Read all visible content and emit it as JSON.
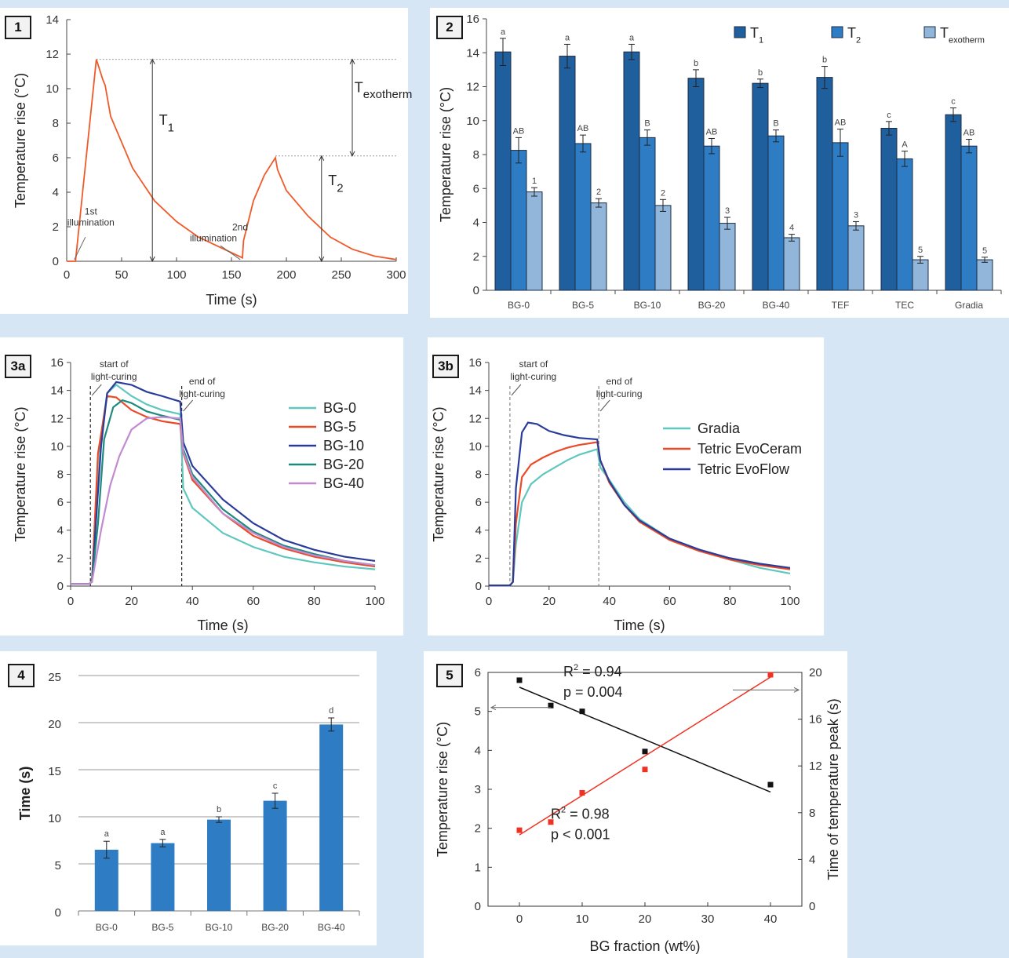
{
  "badges": {
    "p1": "1",
    "p2": "2",
    "p3a": "3a",
    "p3b": "3b",
    "p4": "4",
    "p5": "5"
  },
  "chart_data": [
    {
      "id": "p1",
      "type": "line",
      "xlabel": "Time (s)",
      "ylabel": "Temperature rise (°C)",
      "xlim": [
        0,
        300
      ],
      "ylim": [
        0,
        14
      ],
      "xticks": [
        0,
        50,
        100,
        150,
        200,
        250,
        300
      ],
      "yticks": [
        0,
        2,
        4,
        6,
        8,
        10,
        12,
        14
      ],
      "series": [
        {
          "color": "#f05a28",
          "x": [
            0,
            8,
            27,
            33,
            35,
            40,
            60,
            80,
            100,
            120,
            140,
            160,
            161,
            170,
            180,
            190,
            192,
            200,
            220,
            240,
            260,
            280,
            300
          ],
          "y": [
            0,
            0,
            11.7,
            10.5,
            10.2,
            8.4,
            5.4,
            3.5,
            2.3,
            1.4,
            0.8,
            0.2,
            1.2,
            3.5,
            5.0,
            6.0,
            5.3,
            4.1,
            2.6,
            1.4,
            0.7,
            0.3,
            0.1
          ]
        }
      ],
      "annotations": [
        {
          "text": "1st",
          "text2": "illumination"
        },
        {
          "text": "2nd",
          "text2": "illumination"
        },
        {
          "text": "T",
          "sub": "1"
        },
        {
          "text": "T",
          "sub": "2"
        },
        {
          "text": "T",
          "sub": "exotherm"
        }
      ]
    },
    {
      "id": "p2",
      "type": "bar",
      "ylabel": "Temperature rise (°C)",
      "ylim": [
        0,
        16
      ],
      "yticks": [
        0,
        2,
        4,
        6,
        8,
        10,
        12,
        14,
        16
      ],
      "categories": [
        "BG-0",
        "BG-5",
        "BG-10",
        "BG-20",
        "BG-40",
        "TEF",
        "TEC",
        "Gradia"
      ],
      "series": [
        {
          "name": "T",
          "sub": "1",
          "color": "#1f5f9e",
          "values": [
            14.05,
            13.8,
            14.05,
            12.5,
            12.2,
            12.55,
            9.55,
            10.35
          ],
          "err": [
            0.8,
            0.7,
            0.45,
            0.5,
            0.25,
            0.65,
            0.4,
            0.4
          ],
          "letters": [
            "a",
            "a",
            "a",
            "b",
            "b",
            "b",
            "c",
            "c"
          ]
        },
        {
          "name": "T",
          "sub": "2",
          "color": "#2e7dc4",
          "values": [
            8.25,
            8.65,
            9.0,
            8.5,
            9.1,
            8.7,
            7.75,
            8.5
          ],
          "err": [
            0.75,
            0.5,
            0.45,
            0.45,
            0.35,
            0.8,
            0.45,
            0.4
          ],
          "letters": [
            "AB",
            "AB",
            "B",
            "AB",
            "B",
            "AB",
            "A",
            "AB"
          ]
        },
        {
          "name": "T",
          "sub": "exotherm",
          "color": "#92b5da",
          "values": [
            5.8,
            5.15,
            5.0,
            3.95,
            3.1,
            3.8,
            1.8,
            1.8
          ],
          "err": [
            0.25,
            0.25,
            0.35,
            0.35,
            0.2,
            0.25,
            0.2,
            0.15
          ],
          "letters": [
            "1",
            "2",
            "2",
            "3",
            "4",
            "3",
            "5",
            "5"
          ]
        }
      ]
    },
    {
      "id": "p3a",
      "type": "line",
      "xlabel": "Time (s)",
      "ylabel": "Temperature rise (°C)",
      "xlim": [
        0,
        100
      ],
      "ylim": [
        0,
        16
      ],
      "xticks": [
        0,
        20,
        40,
        60,
        80,
        100
      ],
      "yticks": [
        0,
        2,
        4,
        6,
        8,
        10,
        12,
        14,
        16
      ],
      "annotations": [
        {
          "text": "start of",
          "text2": "light-curing"
        },
        {
          "text": "end of",
          "text2": "light-curing"
        }
      ],
      "series": [
        {
          "name": "BG-0",
          "color": "#5fc7be",
          "x": [
            0,
            6,
            7,
            10,
            12,
            15,
            20,
            25,
            30,
            36,
            37,
            40,
            50,
            60,
            70,
            80,
            90,
            100
          ],
          "y": [
            0.15,
            0.15,
            0.3,
            10.8,
            13.8,
            14.4,
            13.6,
            13.0,
            12.6,
            12.3,
            7.0,
            5.6,
            3.8,
            2.8,
            2.1,
            1.7,
            1.4,
            1.2
          ]
        },
        {
          "name": "BG-5",
          "color": "#ea4a26",
          "x": [
            0,
            6,
            7,
            9,
            12,
            15,
            20,
            25,
            30,
            36,
            37,
            40,
            50,
            60,
            70,
            80,
            90,
            100
          ],
          "y": [
            0.15,
            0.15,
            0.3,
            9.5,
            13.6,
            13.5,
            12.6,
            12.1,
            11.8,
            11.6,
            9.5,
            7.6,
            5.2,
            3.6,
            2.7,
            2.1,
            1.7,
            1.4
          ]
        },
        {
          "name": "BG-10",
          "color": "#2a3c9a",
          "x": [
            0,
            6,
            7,
            10,
            12,
            15,
            20,
            25,
            30,
            36,
            37,
            40,
            50,
            60,
            70,
            80,
            90,
            100
          ],
          "y": [
            0.15,
            0.15,
            0.3,
            10.0,
            13.8,
            14.6,
            14.4,
            13.9,
            13.6,
            13.2,
            10.3,
            8.6,
            6.2,
            4.5,
            3.3,
            2.6,
            2.1,
            1.8
          ]
        },
        {
          "name": "BG-20",
          "color": "#1e8a7e",
          "x": [
            0,
            6,
            7,
            9,
            11,
            14,
            17,
            20,
            25,
            30,
            36,
            37,
            40,
            50,
            60,
            70,
            80,
            90,
            100
          ],
          "y": [
            0.15,
            0.15,
            0.3,
            4.5,
            10.5,
            12.8,
            13.3,
            13.1,
            12.5,
            12.2,
            11.9,
            9.8,
            8.0,
            5.5,
            3.9,
            2.9,
            2.3,
            1.8,
            1.5
          ]
        },
        {
          "name": "BG-40",
          "color": "#c28ad0",
          "x": [
            0,
            6,
            7,
            10,
            13,
            16,
            20,
            25,
            30,
            36,
            37,
            40,
            50,
            60,
            70,
            80,
            90,
            100
          ],
          "y": [
            0.15,
            0.15,
            0.3,
            4.0,
            7.2,
            9.3,
            11.2,
            12.0,
            12.1,
            12.0,
            9.6,
            7.8,
            5.2,
            3.8,
            2.8,
            2.2,
            1.8,
            1.5
          ]
        }
      ]
    },
    {
      "id": "p3b",
      "type": "line",
      "xlabel": "Time (s)",
      "ylabel": "Temperature rise (°C)",
      "xlim": [
        0,
        100
      ],
      "ylim": [
        0,
        16
      ],
      "xticks": [
        0,
        20,
        40,
        60,
        80,
        100
      ],
      "yticks": [
        0,
        2,
        4,
        6,
        8,
        10,
        12,
        14,
        16
      ],
      "annotations": [
        {
          "text": "start of",
          "text2": "light-curing"
        },
        {
          "text": "end of",
          "text2": "light-curing"
        }
      ],
      "series": [
        {
          "name": "Gradia",
          "color": "#5fc7be",
          "x": [
            0,
            7,
            8,
            9,
            11,
            14,
            18,
            22,
            26,
            30,
            36,
            37,
            40,
            45,
            50,
            60,
            70,
            80,
            90,
            100
          ],
          "y": [
            0.05,
            0.05,
            0.3,
            3.0,
            6.0,
            7.3,
            8.0,
            8.5,
            9.0,
            9.4,
            9.8,
            8.5,
            7.6,
            6.0,
            4.8,
            3.4,
            2.6,
            1.9,
            1.3,
            0.9
          ]
        },
        {
          "name": "Tetric EvoCeram",
          "color": "#ea4a26",
          "x": [
            0,
            7,
            8,
            9,
            11,
            14,
            18,
            22,
            26,
            30,
            36,
            37,
            40,
            45,
            50,
            60,
            70,
            80,
            90,
            100
          ],
          "y": [
            0.05,
            0.05,
            0.3,
            4.5,
            7.8,
            8.7,
            9.2,
            9.6,
            9.9,
            10.1,
            10.3,
            9.0,
            7.4,
            5.8,
            4.6,
            3.3,
            2.5,
            1.9,
            1.5,
            1.2
          ]
        },
        {
          "name": "Tetric EvoFlow",
          "color": "#2a3c9a",
          "x": [
            0,
            7,
            8,
            9,
            11,
            13,
            16,
            20,
            25,
            30,
            36,
            37,
            40,
            45,
            50,
            60,
            70,
            80,
            90,
            100
          ],
          "y": [
            0.05,
            0.05,
            0.3,
            7.0,
            11.0,
            11.7,
            11.6,
            11.1,
            10.8,
            10.6,
            10.5,
            9.0,
            7.5,
            5.8,
            4.7,
            3.4,
            2.6,
            2.0,
            1.6,
            1.3
          ]
        }
      ]
    },
    {
      "id": "p4",
      "type": "bar",
      "ylabel": "Time (s)",
      "ylim": [
        0,
        25
      ],
      "yticks": [
        0,
        5,
        10,
        15,
        20,
        25
      ],
      "categories": [
        "BG-0",
        "BG-5",
        "BG-10",
        "BG-20",
        "BG-40"
      ],
      "values": [
        6.5,
        7.2,
        9.7,
        11.7,
        19.8
      ],
      "err": [
        0.9,
        0.4,
        0.3,
        0.8,
        0.7
      ],
      "letters": [
        "a",
        "a",
        "b",
        "c",
        "d"
      ],
      "color": "#2e7dc4"
    },
    {
      "id": "p5",
      "type": "scatter",
      "xlabel": "BG fraction (wt%)",
      "ylabel": "Temperature rise (°C)",
      "y2label": "Time of temperature peak (s)",
      "xlim": [
        -5,
        45
      ],
      "ylim": [
        0,
        6
      ],
      "y2lim": [
        0,
        20
      ],
      "xticks": [
        0,
        10,
        20,
        30,
        40
      ],
      "yticks": [
        0,
        1,
        2,
        3,
        4,
        5,
        6
      ],
      "y2ticks": [
        0,
        4,
        8,
        12,
        16,
        20
      ],
      "series": [
        {
          "axis": "left",
          "color": "#111111",
          "x": [
            0,
            5,
            10,
            20,
            40
          ],
          "y": [
            5.8,
            5.15,
            5.0,
            3.97,
            3.12
          ],
          "fit": [
            [
              0,
              5.62
            ],
            [
              40,
              2.93
            ]
          ],
          "stat1": "R",
          "stat1sup": "2",
          "stat1val": " = 0.94",
          "stat2": "p = 0.004"
        },
        {
          "axis": "right",
          "color": "#ee3322",
          "x": [
            0,
            5,
            10,
            20,
            40
          ],
          "y": [
            6.5,
            7.2,
            9.7,
            11.7,
            19.8
          ],
          "fit": [
            [
              0,
              6.1
            ],
            [
              40,
              19.6
            ]
          ],
          "stat1": "R",
          "stat1sup": "2",
          "stat1val": " = 0.98",
          "stat2": "p < 0.001"
        }
      ]
    }
  ]
}
